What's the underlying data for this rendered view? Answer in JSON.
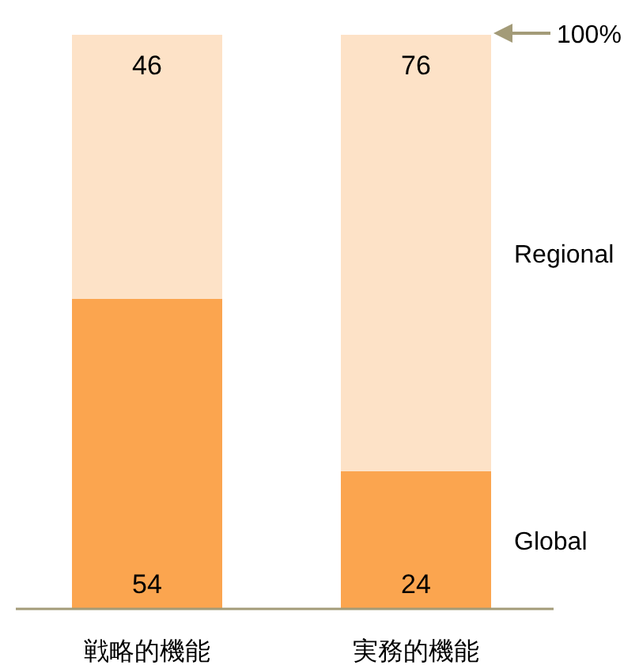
{
  "chart_data": {
    "type": "bar",
    "stacked": true,
    "categories": [
      "戦略的機能",
      "実務的機能"
    ],
    "series": [
      {
        "name": "Global",
        "color": "#fba54f",
        "values": [
          54,
          24
        ]
      },
      {
        "name": "Regional",
        "color": "#fde2c7",
        "values": [
          46,
          76
        ]
      }
    ],
    "data_labels": true,
    "annotations": [
      "100%"
    ]
  }
}
